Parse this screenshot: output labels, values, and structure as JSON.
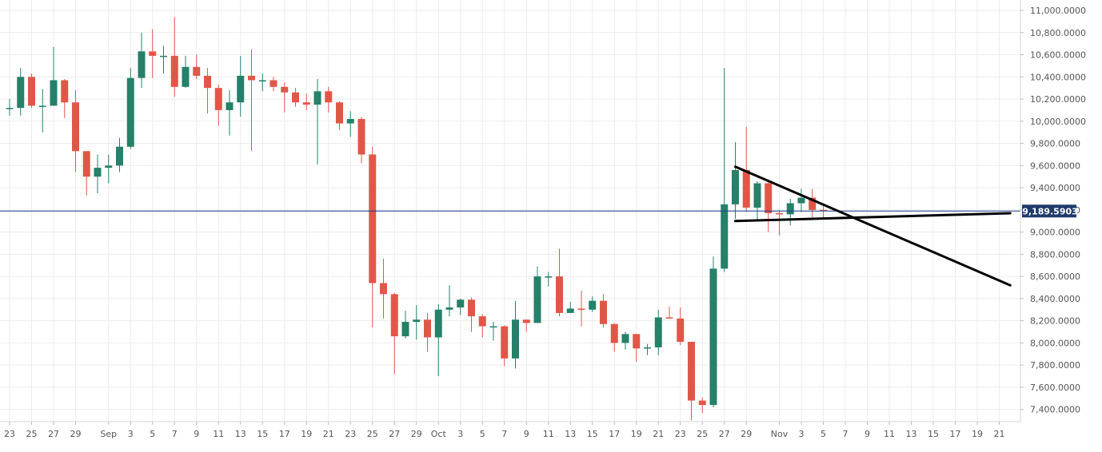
{
  "colors": {
    "up": "#26806a",
    "down": "#e05748",
    "grid": "#ececec",
    "axis_text": "#555555",
    "price_line": "#1b3a8f",
    "price_label_bg": "#1f3a6b",
    "trendline": "#000000"
  },
  "chart_data": {
    "type": "candlestick",
    "title": "",
    "xlabel": "",
    "ylabel": "",
    "ylim": [
      7300,
      11100
    ],
    "grid": true,
    "y_ticks": [
      7400,
      7600,
      7800,
      8000,
      8200,
      8400,
      8600,
      8800,
      9000,
      9200,
      9400,
      9600,
      9800,
      10000,
      10200,
      10400,
      10600,
      10800,
      11000
    ],
    "y_tick_labels": [
      "7,400.0000",
      "7,600.0000",
      "7,800.0000",
      "8,000.0000",
      "8,200.0000",
      "8,400.0000",
      "8,600.0000",
      "8,800.0000",
      "9,000.0000",
      "9,200.0000",
      "9,400.0000",
      "9,600.0000",
      "9,800.0000",
      "10,000.0000",
      "10,200.0000",
      "10,400.0000",
      "10,600.0000",
      "10,800.0000",
      "11,000.0000"
    ],
    "x_dates": [
      "Aug 23",
      "Aug 24",
      "Aug 25",
      "Aug 26",
      "Aug 27",
      "Aug 28",
      "Aug 29",
      "Aug 30",
      "Aug 31",
      "Sep 1",
      "Sep 2",
      "Sep 3",
      "Sep 4",
      "Sep 5",
      "Sep 6",
      "Sep 7",
      "Sep 8",
      "Sep 9",
      "Sep 10",
      "Sep 11",
      "Sep 12",
      "Sep 13",
      "Sep 14",
      "Sep 15",
      "Sep 16",
      "Sep 17",
      "Sep 18",
      "Sep 19",
      "Sep 20",
      "Sep 21",
      "Sep 22",
      "Sep 23",
      "Sep 24",
      "Sep 25",
      "Sep 26",
      "Sep 27",
      "Sep 28",
      "Sep 29",
      "Sep 30",
      "Oct 1",
      "Oct 2",
      "Oct 3",
      "Oct 4",
      "Oct 5",
      "Oct 6",
      "Oct 7",
      "Oct 8",
      "Oct 9",
      "Oct 10",
      "Oct 11",
      "Oct 12",
      "Oct 13",
      "Oct 14",
      "Oct 15",
      "Oct 16",
      "Oct 17",
      "Oct 18",
      "Oct 19",
      "Oct 20",
      "Oct 21",
      "Oct 22",
      "Oct 23",
      "Oct 24",
      "Oct 25",
      "Oct 26",
      "Oct 27",
      "Oct 28",
      "Oct 29",
      "Oct 30",
      "Oct 31",
      "Nov 1",
      "Nov 2",
      "Nov 3",
      "Nov 4",
      "Nov 5",
      "Nov 6",
      "Nov 7",
      "Nov 8",
      "Nov 9",
      "Nov 10",
      "Nov 11",
      "Nov 12",
      "Nov 13",
      "Nov 14",
      "Nov 15",
      "Nov 16",
      "Nov 17",
      "Nov 18",
      "Nov 19",
      "Nov 20",
      "Nov 21",
      "Nov 22"
    ],
    "x_tick_labels": [
      {
        "date": "Aug 23",
        "label": "23"
      },
      {
        "date": "Aug 25",
        "label": "25"
      },
      {
        "date": "Aug 27",
        "label": "27"
      },
      {
        "date": "Aug 29",
        "label": "29"
      },
      {
        "date": "Sep 1",
        "label": "Sep"
      },
      {
        "date": "Sep 3",
        "label": "3"
      },
      {
        "date": "Sep 5",
        "label": "5"
      },
      {
        "date": "Sep 7",
        "label": "7"
      },
      {
        "date": "Sep 9",
        "label": "9"
      },
      {
        "date": "Sep 11",
        "label": "11"
      },
      {
        "date": "Sep 13",
        "label": "13"
      },
      {
        "date": "Sep 15",
        "label": "15"
      },
      {
        "date": "Sep 17",
        "label": "17"
      },
      {
        "date": "Sep 19",
        "label": "19"
      },
      {
        "date": "Sep 21",
        "label": "21"
      },
      {
        "date": "Sep 23",
        "label": "23"
      },
      {
        "date": "Sep 25",
        "label": "25"
      },
      {
        "date": "Sep 27",
        "label": "27"
      },
      {
        "date": "Sep 29",
        "label": "29"
      },
      {
        "date": "Oct 1",
        "label": "Oct"
      },
      {
        "date": "Oct 3",
        "label": "3"
      },
      {
        "date": "Oct 5",
        "label": "5"
      },
      {
        "date": "Oct 7",
        "label": "7"
      },
      {
        "date": "Oct 9",
        "label": "9"
      },
      {
        "date": "Oct 11",
        "label": "11"
      },
      {
        "date": "Oct 13",
        "label": "13"
      },
      {
        "date": "Oct 15",
        "label": "15"
      },
      {
        "date": "Oct 17",
        "label": "17"
      },
      {
        "date": "Oct 19",
        "label": "19"
      },
      {
        "date": "Oct 21",
        "label": "21"
      },
      {
        "date": "Oct 23",
        "label": "23"
      },
      {
        "date": "Oct 25",
        "label": "25"
      },
      {
        "date": "Oct 27",
        "label": "27"
      },
      {
        "date": "Oct 29",
        "label": "29"
      },
      {
        "date": "Nov 1",
        "label": "Nov"
      },
      {
        "date": "Nov 3",
        "label": "3"
      },
      {
        "date": "Nov 5",
        "label": "5"
      },
      {
        "date": "Nov 7",
        "label": "7"
      },
      {
        "date": "Nov 9",
        "label": "9"
      },
      {
        "date": "Nov 11",
        "label": "11"
      },
      {
        "date": "Nov 13",
        "label": "13"
      },
      {
        "date": "Nov 15",
        "label": "15"
      },
      {
        "date": "Nov 17",
        "label": "17"
      },
      {
        "date": "Nov 19",
        "label": "19"
      },
      {
        "date": "Nov 21",
        "label": "21"
      }
    ],
    "candles": [
      {
        "date": "Aug 23",
        "open": 10120,
        "high": 10200,
        "low": 10050,
        "close": 10120
      },
      {
        "date": "Aug 24",
        "open": 10120,
        "high": 10480,
        "low": 10050,
        "close": 10400
      },
      {
        "date": "Aug 25",
        "open": 10400,
        "high": 10430,
        "low": 10120,
        "close": 10140
      },
      {
        "date": "Aug 26",
        "open": 10140,
        "high": 10290,
        "low": 9900,
        "close": 10140
      },
      {
        "date": "Aug 27",
        "open": 10140,
        "high": 10670,
        "low": 10140,
        "close": 10370
      },
      {
        "date": "Aug 28",
        "open": 10370,
        "high": 10380,
        "low": 10030,
        "close": 10170
      },
      {
        "date": "Aug 29",
        "open": 10170,
        "high": 10280,
        "low": 9540,
        "close": 9730
      },
      {
        "date": "Aug 30",
        "open": 9730,
        "high": 9730,
        "low": 9330,
        "close": 9500
      },
      {
        "date": "Aug 31",
        "open": 9500,
        "high": 9700,
        "low": 9350,
        "close": 9580
      },
      {
        "date": "Sep 1",
        "open": 9580,
        "high": 9700,
        "low": 9440,
        "close": 9600
      },
      {
        "date": "Sep 2",
        "open": 9600,
        "high": 9850,
        "low": 9540,
        "close": 9770
      },
      {
        "date": "Sep 3",
        "open": 9770,
        "high": 10480,
        "low": 9750,
        "close": 10390
      },
      {
        "date": "Sep 4",
        "open": 10390,
        "high": 10800,
        "low": 10300,
        "close": 10630
      },
      {
        "date": "Sep 5",
        "open": 10630,
        "high": 10830,
        "low": 10390,
        "close": 10590
      },
      {
        "date": "Sep 6",
        "open": 10590,
        "high": 10680,
        "low": 10430,
        "close": 10590
      },
      {
        "date": "Sep 7",
        "open": 10590,
        "high": 10940,
        "low": 10220,
        "close": 10310
      },
      {
        "date": "Sep 8",
        "open": 10310,
        "high": 10590,
        "low": 10300,
        "close": 10490
      },
      {
        "date": "Sep 9",
        "open": 10490,
        "high": 10600,
        "low": 10380,
        "close": 10410
      },
      {
        "date": "Sep 10",
        "open": 10410,
        "high": 10480,
        "low": 10070,
        "close": 10300
      },
      {
        "date": "Sep 11",
        "open": 10300,
        "high": 10330,
        "low": 9960,
        "close": 10100
      },
      {
        "date": "Sep 12",
        "open": 10100,
        "high": 10280,
        "low": 9870,
        "close": 10170
      },
      {
        "date": "Sep 13",
        "open": 10170,
        "high": 10590,
        "low": 10040,
        "close": 10410
      },
      {
        "date": "Sep 14",
        "open": 10410,
        "high": 10650,
        "low": 9730,
        "close": 10370
      },
      {
        "date": "Sep 15",
        "open": 10370,
        "high": 10430,
        "low": 10270,
        "close": 10370
      },
      {
        "date": "Sep 16",
        "open": 10370,
        "high": 10400,
        "low": 10270,
        "close": 10310
      },
      {
        "date": "Sep 17",
        "open": 10310,
        "high": 10350,
        "low": 10080,
        "close": 10260
      },
      {
        "date": "Sep 18",
        "open": 10260,
        "high": 10300,
        "low": 10130,
        "close": 10170
      },
      {
        "date": "Sep 19",
        "open": 10170,
        "high": 10250,
        "low": 10100,
        "close": 10150
      },
      {
        "date": "Sep 20",
        "open": 10150,
        "high": 10380,
        "low": 9610,
        "close": 10270
      },
      {
        "date": "Sep 21",
        "open": 10270,
        "high": 10310,
        "low": 10080,
        "close": 10170
      },
      {
        "date": "Sep 22",
        "open": 10170,
        "high": 10180,
        "low": 9920,
        "close": 9980
      },
      {
        "date": "Sep 23",
        "open": 9980,
        "high": 10090,
        "low": 9860,
        "close": 10020
      },
      {
        "date": "Sep 24",
        "open": 10020,
        "high": 10040,
        "low": 9620,
        "close": 9700
      },
      {
        "date": "Sep 25",
        "open": 9700,
        "high": 9770,
        "low": 8140,
        "close": 8540
      },
      {
        "date": "Sep 26",
        "open": 8540,
        "high": 8760,
        "low": 8220,
        "close": 8440
      },
      {
        "date": "Sep 27",
        "open": 8440,
        "high": 8450,
        "low": 7720,
        "close": 8060
      },
      {
        "date": "Sep 28",
        "open": 8060,
        "high": 8290,
        "low": 8040,
        "close": 8190
      },
      {
        "date": "Sep 29",
        "open": 8190,
        "high": 8340,
        "low": 8030,
        "close": 8210
      },
      {
        "date": "Sep 30",
        "open": 8210,
        "high": 8270,
        "low": 7920,
        "close": 8050
      },
      {
        "date": "Oct 1",
        "open": 8050,
        "high": 8350,
        "low": 7700,
        "close": 8300
      },
      {
        "date": "Oct 2",
        "open": 8300,
        "high": 8520,
        "low": 8240,
        "close": 8320
      },
      {
        "date": "Oct 3",
        "open": 8320,
        "high": 8400,
        "low": 8250,
        "close": 8390
      },
      {
        "date": "Oct 4",
        "open": 8390,
        "high": 8410,
        "low": 8100,
        "close": 8240
      },
      {
        "date": "Oct 5",
        "open": 8240,
        "high": 8260,
        "low": 8050,
        "close": 8150
      },
      {
        "date": "Oct 6",
        "open": 8150,
        "high": 8190,
        "low": 8020,
        "close": 8150
      },
      {
        "date": "Oct 7",
        "open": 8150,
        "high": 8160,
        "low": 7790,
        "close": 7860
      },
      {
        "date": "Oct 8",
        "open": 7860,
        "high": 8380,
        "low": 7770,
        "close": 8210
      },
      {
        "date": "Oct 9",
        "open": 8210,
        "high": 8210,
        "low": 8100,
        "close": 8180
      },
      {
        "date": "Oct 10",
        "open": 8180,
        "high": 8690,
        "low": 8180,
        "close": 8600
      },
      {
        "date": "Oct 11",
        "open": 8600,
        "high": 8640,
        "low": 8510,
        "close": 8600
      },
      {
        "date": "Oct 12",
        "open": 8600,
        "high": 8850,
        "low": 8240,
        "close": 8270
      },
      {
        "date": "Oct 13",
        "open": 8270,
        "high": 8370,
        "low": 8270,
        "close": 8310
      },
      {
        "date": "Oct 14",
        "open": 8310,
        "high": 8470,
        "low": 8150,
        "close": 8300
      },
      {
        "date": "Oct 15",
        "open": 8300,
        "high": 8420,
        "low": 8280,
        "close": 8380
      },
      {
        "date": "Oct 16",
        "open": 8380,
        "high": 8440,
        "low": 8140,
        "close": 8170
      },
      {
        "date": "Oct 17",
        "open": 8170,
        "high": 8180,
        "low": 7920,
        "close": 8000
      },
      {
        "date": "Oct 18",
        "open": 8000,
        "high": 8100,
        "low": 7940,
        "close": 8080
      },
      {
        "date": "Oct 19",
        "open": 8080,
        "high": 8080,
        "low": 7830,
        "close": 7950
      },
      {
        "date": "Oct 20",
        "open": 7950,
        "high": 7990,
        "low": 7890,
        "close": 7960
      },
      {
        "date": "Oct 21",
        "open": 7960,
        "high": 8300,
        "low": 7890,
        "close": 8230
      },
      {
        "date": "Oct 22",
        "open": 8230,
        "high": 8330,
        "low": 8220,
        "close": 8220
      },
      {
        "date": "Oct 23",
        "open": 8220,
        "high": 8320,
        "low": 7980,
        "close": 8010
      },
      {
        "date": "Oct 24",
        "open": 8010,
        "high": 8010,
        "low": 7300,
        "close": 7480
      },
      {
        "date": "Oct 25",
        "open": 7480,
        "high": 7510,
        "low": 7370,
        "close": 7440
      },
      {
        "date": "Oct 26",
        "open": 7440,
        "high": 8780,
        "low": 7420,
        "close": 8670
      },
      {
        "date": "Oct 27",
        "open": 8670,
        "high": 10480,
        "low": 8640,
        "close": 9250
      },
      {
        "date": "Oct 28",
        "open": 9250,
        "high": 9810,
        "low": 9120,
        "close": 9560
      },
      {
        "date": "Oct 29",
        "open": 9560,
        "high": 9950,
        "low": 9180,
        "close": 9220
      },
      {
        "date": "Oct 30",
        "open": 9220,
        "high": 9460,
        "low": 9100,
        "close": 9440
      },
      {
        "date": "Oct 31",
        "open": 9440,
        "high": 9460,
        "low": 9000,
        "close": 9170
      },
      {
        "date": "Nov 1",
        "open": 9170,
        "high": 9200,
        "low": 8970,
        "close": 9160
      },
      {
        "date": "Nov 2",
        "open": 9160,
        "high": 9300,
        "low": 9060,
        "close": 9260
      },
      {
        "date": "Nov 3",
        "open": 9260,
        "high": 9390,
        "low": 9180,
        "close": 9310
      },
      {
        "date": "Nov 4",
        "open": 9310,
        "high": 9390,
        "low": 9120,
        "close": 9200
      },
      {
        "date": "Nov 5",
        "open": 9200,
        "high": 9260,
        "low": 9120,
        "close": 9189.59
      }
    ],
    "last_price": 9189.5903,
    "last_price_label": "9,189.5903",
    "trendlines": [
      {
        "name": "descending-resistance",
        "from": {
          "date": "Oct 28",
          "value": 9590
        },
        "to": {
          "date": "Nov 22",
          "value": 8520
        }
      },
      {
        "name": "horizontal-support",
        "from": {
          "date": "Oct 28",
          "value": 9100
        },
        "to": {
          "date": "Nov 22",
          "value": 9170
        }
      }
    ]
  }
}
